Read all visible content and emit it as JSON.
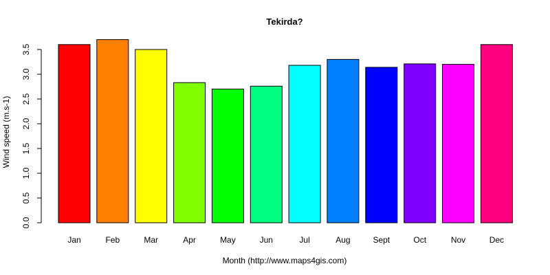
{
  "chart_data": {
    "type": "bar",
    "title": "Tekirda?",
    "xlabel": "Month (http://www.maps4gis.com)",
    "ylabel": "Wind speed (m.s-1)",
    "categories": [
      "Jan",
      "Feb",
      "Mar",
      "Apr",
      "May",
      "Jun",
      "Jul",
      "Aug",
      "Sept",
      "Oct",
      "Nov",
      "Dec"
    ],
    "values": [
      3.6,
      3.7,
      3.5,
      2.83,
      2.7,
      2.76,
      3.18,
      3.3,
      3.14,
      3.21,
      3.2,
      3.6
    ],
    "colors": [
      "#FF0000",
      "#FF8000",
      "#FFFF00",
      "#80FF00",
      "#00FF00",
      "#00FF80",
      "#00FFFF",
      "#0080FF",
      "#0000FF",
      "#8000FF",
      "#FF00FF",
      "#FF0080"
    ],
    "ylim": [
      0,
      3.7
    ],
    "yticks": [
      0.0,
      0.5,
      1.0,
      1.5,
      2.0,
      2.5,
      3.0,
      3.5
    ],
    "ytick_labels": [
      "0.0",
      "0.5",
      "1.0",
      "1.5",
      "2.0",
      "2.5",
      "3.0",
      "3.5"
    ],
    "grid": false,
    "legend": "none"
  }
}
